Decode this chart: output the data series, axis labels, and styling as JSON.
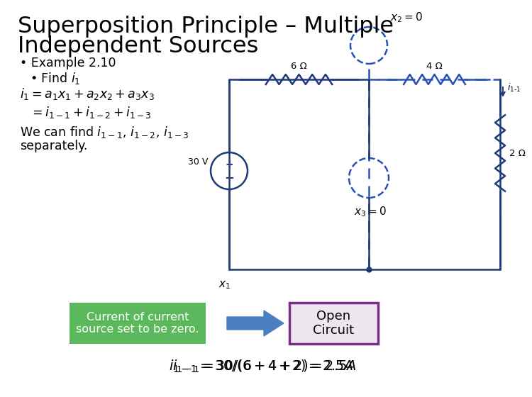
{
  "title_line1": "Superposition Principle – Multiple",
  "title_line2": "Independent Sources",
  "bg_color": "#ffffff",
  "circuit_color": "#1e3a78",
  "dashed_color": "#2a50b8",
  "green_box_color": "#5cb85c",
  "open_circuit_border": "#7b2d8b",
  "open_circuit_bg": "#ede8f0",
  "arrow_color": "#4a7fc1",
  "res1": "6 Ω",
  "res2": "4 Ω",
  "res3": "2 Ω",
  "voltage": "30 V",
  "green_text": "Current of current\nsource set to be zero.",
  "open_text": "Open\nCircuit"
}
